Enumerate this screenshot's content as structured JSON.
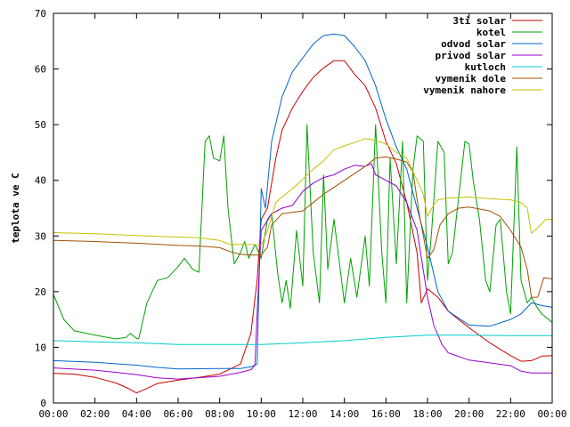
{
  "chart_data": {
    "type": "line",
    "ylabel": "teplota ve C",
    "xlim": [
      0,
      24
    ],
    "ylim": [
      0,
      70
    ],
    "x_ticks": [
      "00:00",
      "02:00",
      "04:00",
      "06:00",
      "08:00",
      "10:00",
      "12:00",
      "14:00",
      "16:00",
      "18:00",
      "20:00",
      "22:00",
      "00:00"
    ],
    "y_ticks": [
      "0",
      "10",
      "20",
      "30",
      "40",
      "50",
      "60",
      "70"
    ],
    "legend_position": "top-right",
    "series": [
      {
        "name": "3ti solar",
        "color": "#cc0000",
        "points": [
          [
            0,
            5.3
          ],
          [
            1,
            5.2
          ],
          [
            2,
            4.6
          ],
          [
            3,
            3.6
          ],
          [
            3.5,
            2.8
          ],
          [
            4,
            1.8
          ],
          [
            4.5,
            2.6
          ],
          [
            5,
            3.5
          ],
          [
            6,
            4.1
          ],
          [
            7,
            4.6
          ],
          [
            8,
            5.2
          ],
          [
            9,
            7.0
          ],
          [
            9.5,
            12.5
          ],
          [
            9.8,
            22
          ],
          [
            10,
            33
          ],
          [
            10.3,
            35
          ],
          [
            10.7,
            44
          ],
          [
            11,
            49
          ],
          [
            11.5,
            53
          ],
          [
            12,
            56
          ],
          [
            12.5,
            58.5
          ],
          [
            13,
            60.2
          ],
          [
            13.5,
            61.5
          ],
          [
            14,
            61.5
          ],
          [
            14.5,
            59
          ],
          [
            15,
            57
          ],
          [
            15.5,
            53
          ],
          [
            16,
            47
          ],
          [
            16.5,
            43
          ],
          [
            17,
            36
          ],
          [
            17.5,
            27
          ],
          [
            17.7,
            18
          ],
          [
            18,
            20.5
          ],
          [
            18.5,
            19
          ],
          [
            19,
            16.5
          ],
          [
            20,
            13.5
          ],
          [
            21,
            10.8
          ],
          [
            22,
            8.5
          ],
          [
            22.5,
            7.5
          ],
          [
            23,
            7.6
          ],
          [
            23.5,
            8.4
          ],
          [
            24,
            8.5
          ]
        ]
      },
      {
        "name": "kotel",
        "color": "#00a000",
        "points": [
          [
            0,
            19.5
          ],
          [
            0.5,
            15
          ],
          [
            1,
            13
          ],
          [
            2,
            12.2
          ],
          [
            3,
            11.5
          ],
          [
            3.5,
            11.8
          ],
          [
            3.7,
            12.5
          ],
          [
            4,
            11.6
          ],
          [
            4.1,
            11.5
          ],
          [
            4.5,
            18
          ],
          [
            5,
            22
          ],
          [
            5.5,
            22.5
          ],
          [
            6,
            24.5
          ],
          [
            6.3,
            26
          ],
          [
            6.7,
            24
          ],
          [
            7,
            23.5
          ],
          [
            7.3,
            47
          ],
          [
            7.5,
            48
          ],
          [
            7.7,
            44
          ],
          [
            8,
            43.5
          ],
          [
            8.2,
            48
          ],
          [
            8.4,
            35
          ],
          [
            8.7,
            25
          ],
          [
            9,
            27
          ],
          [
            9.2,
            29
          ],
          [
            9.4,
            26
          ],
          [
            9.7,
            28.5
          ],
          [
            10,
            26
          ],
          [
            10.3,
            33
          ],
          [
            10.5,
            34
          ],
          [
            10.8,
            23
          ],
          [
            11,
            18
          ],
          [
            11.2,
            22
          ],
          [
            11.4,
            17
          ],
          [
            11.7,
            31
          ],
          [
            12,
            21
          ],
          [
            12.2,
            50
          ],
          [
            12.5,
            27
          ],
          [
            12.8,
            18
          ],
          [
            13,
            41
          ],
          [
            13.2,
            24
          ],
          [
            13.5,
            33
          ],
          [
            13.8,
            24
          ],
          [
            14,
            18
          ],
          [
            14.3,
            26
          ],
          [
            14.6,
            19
          ],
          [
            15,
            30
          ],
          [
            15.2,
            21
          ],
          [
            15.5,
            50
          ],
          [
            15.8,
            27
          ],
          [
            16,
            18
          ],
          [
            16.2,
            44
          ],
          [
            16.5,
            25
          ],
          [
            16.8,
            47
          ],
          [
            17,
            18
          ],
          [
            17.3,
            42
          ],
          [
            17.5,
            48
          ],
          [
            17.8,
            47
          ],
          [
            18,
            22
          ],
          [
            18.2,
            31
          ],
          [
            18.5,
            47
          ],
          [
            18.8,
            45
          ],
          [
            19,
            25
          ],
          [
            19.2,
            27
          ],
          [
            19.5,
            37
          ],
          [
            19.8,
            47
          ],
          [
            20,
            46.5
          ],
          [
            20.2,
            40
          ],
          [
            20.5,
            33
          ],
          [
            20.8,
            22
          ],
          [
            21,
            20
          ],
          [
            21.3,
            32
          ],
          [
            21.5,
            33
          ],
          [
            21.8,
            20
          ],
          [
            22,
            16
          ],
          [
            22.3,
            46
          ],
          [
            22.5,
            22
          ],
          [
            22.8,
            18
          ],
          [
            23,
            19
          ],
          [
            23.3,
            17
          ],
          [
            23.5,
            16
          ],
          [
            24,
            14.5
          ]
        ]
      },
      {
        "name": "odvod solar",
        "color": "#0066cc",
        "points": [
          [
            0,
            7.6
          ],
          [
            2,
            7.3
          ],
          [
            4,
            6.8
          ],
          [
            5,
            6.4
          ],
          [
            6,
            6.1
          ],
          [
            8,
            6.2
          ],
          [
            9,
            6.2
          ],
          [
            9.5,
            6.5
          ],
          [
            9.8,
            7
          ],
          [
            10,
            38.5
          ],
          [
            10.2,
            35
          ],
          [
            10.5,
            47
          ],
          [
            11,
            55
          ],
          [
            11.5,
            59.5
          ],
          [
            12,
            62
          ],
          [
            12.5,
            64.5
          ],
          [
            13,
            66
          ],
          [
            13.5,
            66.3
          ],
          [
            14,
            66
          ],
          [
            14.5,
            64
          ],
          [
            15,
            61.5
          ],
          [
            15.5,
            57
          ],
          [
            16,
            51
          ],
          [
            16.5,
            46
          ],
          [
            17,
            42
          ],
          [
            17.5,
            35
          ],
          [
            18,
            28
          ],
          [
            18.5,
            20
          ],
          [
            19,
            16.5
          ],
          [
            20,
            14
          ],
          [
            21,
            13.8
          ],
          [
            22,
            15
          ],
          [
            22.5,
            16
          ],
          [
            23,
            18
          ],
          [
            23.5,
            17.5
          ],
          [
            24,
            17.2
          ]
        ]
      },
      {
        "name": "privod solar",
        "color": "#9900cc",
        "points": [
          [
            0,
            6.3
          ],
          [
            2,
            5.9
          ],
          [
            4,
            5.1
          ],
          [
            5,
            4.5
          ],
          [
            6,
            4.3
          ],
          [
            8,
            4.8
          ],
          [
            9,
            5.5
          ],
          [
            9.5,
            6
          ],
          [
            9.7,
            6.8
          ],
          [
            9.8,
            16
          ],
          [
            10,
            31
          ],
          [
            10.5,
            34
          ],
          [
            11,
            35
          ],
          [
            11.5,
            35.5
          ],
          [
            12,
            38
          ],
          [
            12.5,
            39.5
          ],
          [
            13,
            40.5
          ],
          [
            13.5,
            41
          ],
          [
            14,
            42
          ],
          [
            14.5,
            42.7
          ],
          [
            15,
            42.5
          ],
          [
            15.3,
            43
          ],
          [
            15.5,
            41
          ],
          [
            16,
            40
          ],
          [
            16.5,
            39
          ],
          [
            17,
            36
          ],
          [
            17.5,
            31
          ],
          [
            18,
            19
          ],
          [
            18.3,
            14
          ],
          [
            18.7,
            10.5
          ],
          [
            19,
            9
          ],
          [
            20,
            7.7
          ],
          [
            21,
            7.2
          ],
          [
            22,
            6.7
          ],
          [
            22.5,
            5.7
          ],
          [
            23,
            5.4
          ],
          [
            24,
            5.4
          ]
        ]
      },
      {
        "name": "kutloch",
        "color": "#00cccc",
        "points": [
          [
            0,
            11.2
          ],
          [
            2,
            11
          ],
          [
            4,
            10.8
          ],
          [
            6,
            10.5
          ],
          [
            8,
            10.5
          ],
          [
            10,
            10.5
          ],
          [
            12,
            10.8
          ],
          [
            14,
            11.2
          ],
          [
            16,
            11.8
          ],
          [
            18,
            12.2
          ],
          [
            20,
            12.2
          ],
          [
            22,
            12.1
          ],
          [
            24,
            12.1
          ]
        ]
      },
      {
        "name": "vymenik dole",
        "color": "#a05000",
        "points": [
          [
            0,
            29.2
          ],
          [
            2,
            29
          ],
          [
            4,
            28.7
          ],
          [
            6,
            28.3
          ],
          [
            7,
            28.2
          ],
          [
            8,
            27.9
          ],
          [
            8.5,
            27.2
          ],
          [
            9,
            26.7
          ],
          [
            9.5,
            26.6
          ],
          [
            10,
            26.6
          ],
          [
            10.3,
            28
          ],
          [
            10.5,
            32
          ],
          [
            11,
            34
          ],
          [
            12,
            34.5
          ],
          [
            12.5,
            36
          ],
          [
            13,
            37.5
          ],
          [
            14,
            40
          ],
          [
            15,
            42.5
          ],
          [
            15.5,
            44
          ],
          [
            16,
            44.2
          ],
          [
            16.5,
            43.8
          ],
          [
            17,
            43.3
          ],
          [
            17.3,
            41.5
          ],
          [
            17.6,
            34
          ],
          [
            18,
            26
          ],
          [
            18.3,
            27.5
          ],
          [
            18.6,
            32
          ],
          [
            19,
            34
          ],
          [
            19.5,
            35
          ],
          [
            20,
            35.2
          ],
          [
            21,
            34.5
          ],
          [
            21.5,
            33.5
          ],
          [
            22,
            31
          ],
          [
            22.5,
            28
          ],
          [
            22.8,
            24
          ],
          [
            23,
            19
          ],
          [
            23.3,
            19
          ],
          [
            23.6,
            22.5
          ],
          [
            24,
            22.3
          ]
        ]
      },
      {
        "name": "vymenik nahore",
        "color": "#c8c000",
        "points": [
          [
            0,
            30.6
          ],
          [
            2,
            30.4
          ],
          [
            4,
            30.1
          ],
          [
            6,
            29.8
          ],
          [
            7,
            29.7
          ],
          [
            8,
            29.2
          ],
          [
            8.5,
            28.5
          ],
          [
            9,
            28.5
          ],
          [
            9.5,
            28.5
          ],
          [
            10,
            28.3
          ],
          [
            10.3,
            31
          ],
          [
            10.7,
            36
          ],
          [
            11,
            37
          ],
          [
            11.5,
            38.5
          ],
          [
            12,
            40.2
          ],
          [
            12.5,
            42
          ],
          [
            13,
            43.5
          ],
          [
            13.5,
            45.5
          ],
          [
            14,
            46.2
          ],
          [
            14.5,
            46.8
          ],
          [
            15,
            47.5
          ],
          [
            15.5,
            47.2
          ],
          [
            16,
            46.5
          ],
          [
            16.5,
            45
          ],
          [
            17,
            44
          ],
          [
            17.5,
            40
          ],
          [
            17.8,
            37.5
          ],
          [
            18,
            33.5
          ],
          [
            18.2,
            35
          ],
          [
            18.5,
            36.5
          ],
          [
            19,
            36.8
          ],
          [
            20,
            37
          ],
          [
            21,
            36.7
          ],
          [
            22,
            36.5
          ],
          [
            22.5,
            36
          ],
          [
            22.8,
            35
          ],
          [
            23,
            30.5
          ],
          [
            23.3,
            31.5
          ],
          [
            23.7,
            33
          ],
          [
            24,
            33
          ]
        ]
      }
    ]
  }
}
